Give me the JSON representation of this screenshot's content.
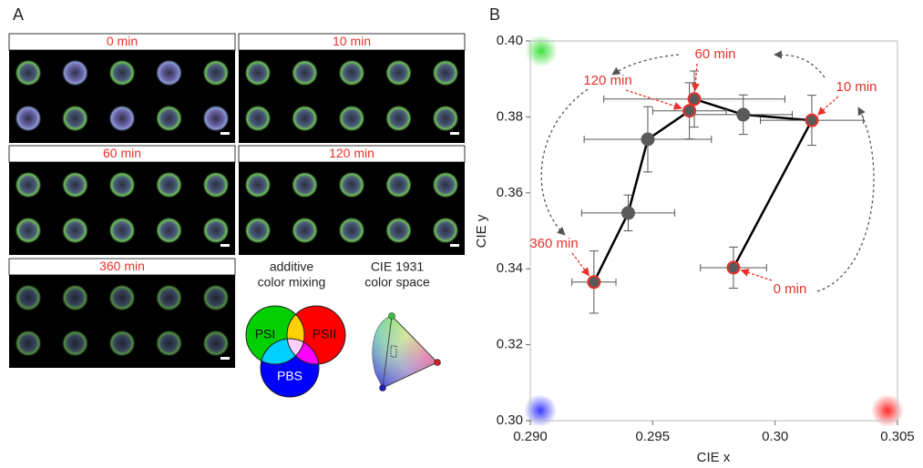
{
  "panel_a": {
    "label": "A",
    "panels": [
      "0 min",
      "10 min",
      "60 min",
      "120 min",
      "360 min"
    ],
    "mixing_title": [
      "additive",
      "color mixing"
    ],
    "venn": [
      "PSI",
      "PSII",
      "PBS"
    ],
    "cie_title": [
      "CIE 1931",
      "color space"
    ]
  },
  "chart_data": {
    "type": "scatter",
    "panel_label": "B",
    "x_label": "CIE x",
    "y_label": "CIE y",
    "xlim": [
      0.29,
      0.305
    ],
    "xticks": [
      {
        "value": 0.29,
        "label": "0.290"
      },
      0.295,
      {
        "value": 0.3,
        "label": "0.30"
      },
      0.305
    ],
    "ylim": [
      0.3,
      0.4
    ],
    "yticks": [
      {
        "value": 0.3,
        "label": "0.30"
      },
      0.32,
      0.34,
      0.36,
      0.38,
      {
        "value": 0.4,
        "label": "0.40"
      }
    ],
    "series": [
      {
        "color": "#5a5a5a",
        "highlight_color": "#e8312a",
        "x": [
          0.2983,
          0.3015,
          0.2987,
          0.2967,
          0.2965,
          0.2948,
          0.294,
          0.2926
        ],
        "values": [
          0.3403,
          0.3791,
          0.3806,
          0.3847,
          0.3816,
          0.3741,
          0.3547,
          0.3365
        ],
        "x_err": [
          0.00135,
          0.0021,
          0.002,
          0.0037,
          0.0015,
          0.0026,
          0.0019,
          0.0009
        ],
        "y_err": [
          0.0054,
          0.0066,
          0.0052,
          0.0074,
          0.0074,
          0.0086,
          0.0047,
          0.0082
        ]
      }
    ],
    "annotations": [
      "0 min",
      "10 min",
      "60 min",
      "120 min",
      "360 min"
    ]
  }
}
